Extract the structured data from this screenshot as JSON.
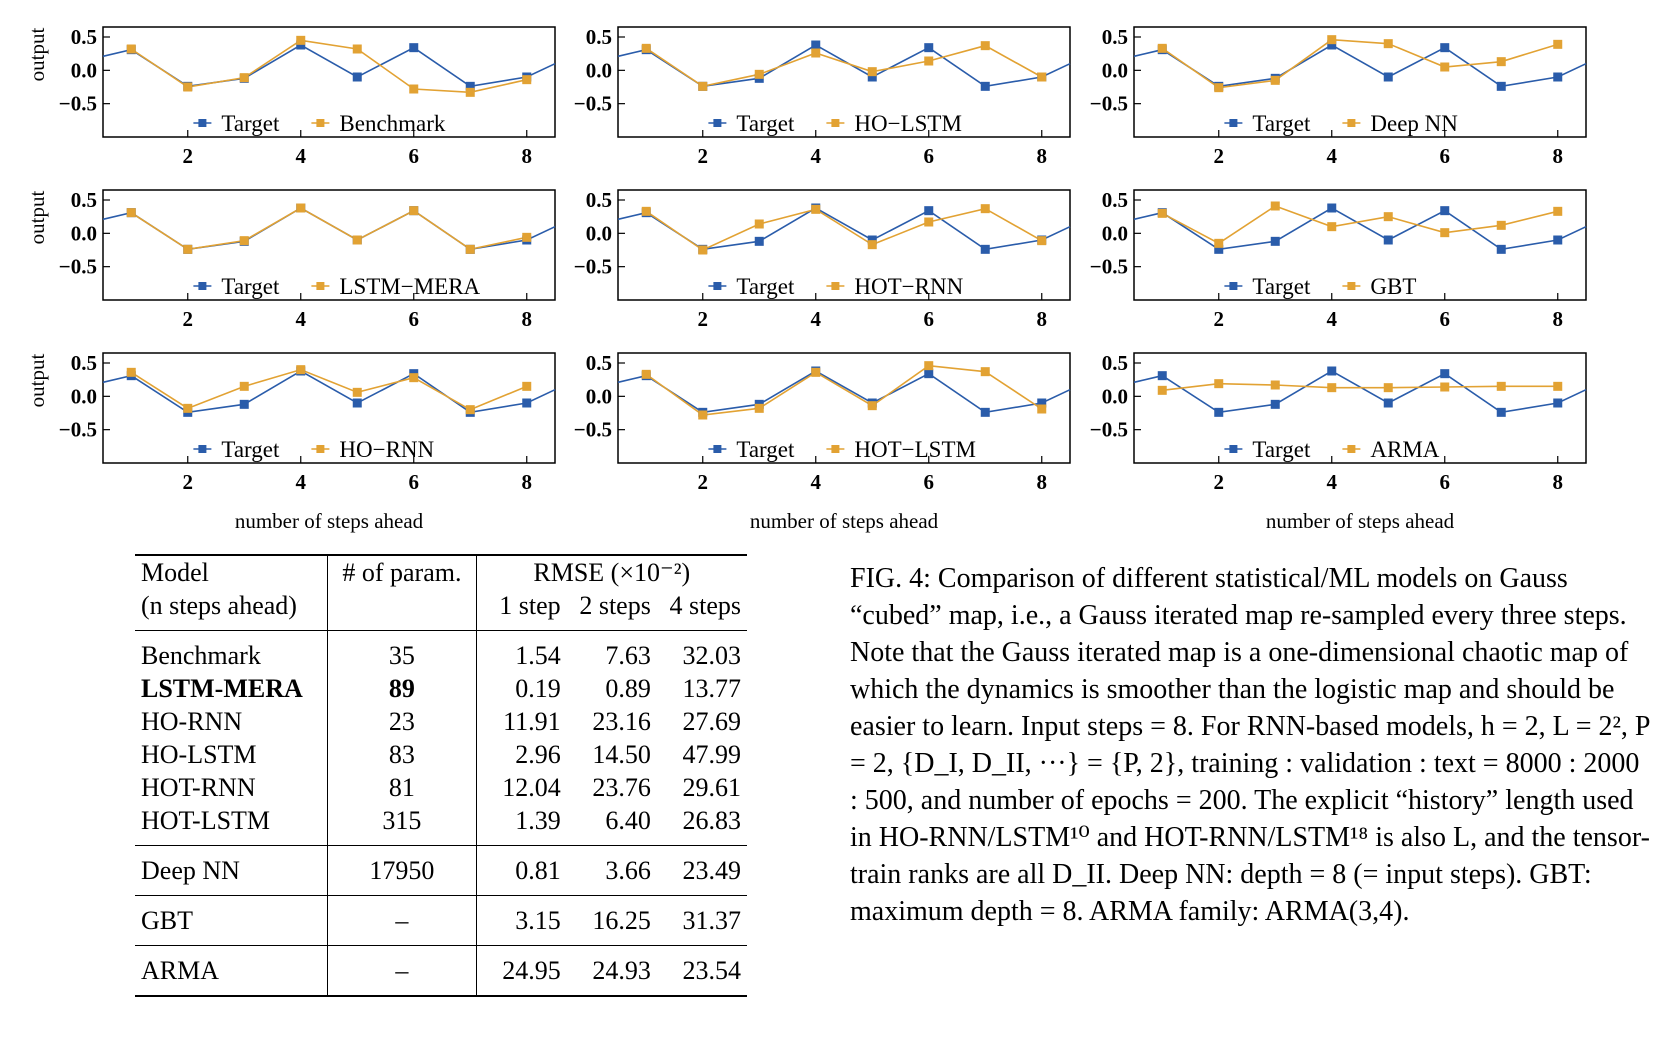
{
  "colors": {
    "target": "#2a5caa",
    "model": "#e2a233"
  },
  "axis_label_y": "output",
  "axis_label_x": "number of steps ahead",
  "target_label": "Target",
  "chart_data": [
    {
      "type": "line",
      "model": "Benchmark",
      "x": [
        1,
        2,
        3,
        4,
        5,
        6,
        7,
        8
      ],
      "target": [
        0.31,
        -0.24,
        -0.12,
        0.38,
        -0.1,
        0.34,
        -0.24,
        -0.1
      ],
      "prediction": [
        0.32,
        -0.25,
        -0.11,
        0.45,
        0.32,
        -0.28,
        -0.33,
        -0.14
      ],
      "ylim": [
        -1.0,
        0.65
      ],
      "xlim": [
        0.5,
        8.5
      ],
      "yticks": [
        0.5,
        0.0,
        -0.5
      ],
      "ytick_labels": [
        "0.5",
        "0.0",
        "−0.5"
      ],
      "xticks": [
        2,
        4,
        6,
        8
      ]
    },
    {
      "type": "line",
      "model": "HO−LSTM",
      "x": [
        1,
        2,
        3,
        4,
        5,
        6,
        7,
        8
      ],
      "target": [
        0.31,
        -0.24,
        -0.12,
        0.38,
        -0.1,
        0.34,
        -0.24,
        -0.1
      ],
      "prediction": [
        0.33,
        -0.24,
        -0.06,
        0.26,
        -0.02,
        0.14,
        0.37,
        -0.1
      ],
      "ylim": [
        -1.0,
        0.65
      ],
      "xlim": [
        0.5,
        8.5
      ],
      "yticks": [
        0.5,
        0.0,
        -0.5
      ],
      "ytick_labels": [
        "0.5",
        "0.0",
        "−0.5"
      ],
      "xticks": [
        2,
        4,
        6,
        8
      ]
    },
    {
      "type": "line",
      "model": "Deep NN",
      "x": [
        1,
        2,
        3,
        4,
        5,
        6,
        7,
        8
      ],
      "target": [
        0.31,
        -0.24,
        -0.12,
        0.38,
        -0.1,
        0.34,
        -0.24,
        -0.1
      ],
      "prediction": [
        0.33,
        -0.26,
        -0.15,
        0.46,
        0.4,
        0.05,
        0.13,
        0.39
      ],
      "ylim": [
        -1.0,
        0.65
      ],
      "xlim": [
        0.5,
        8.5
      ],
      "yticks": [
        0.5,
        0.0,
        -0.5
      ],
      "ytick_labels": [
        "0.5",
        "0.0",
        "−0.5"
      ],
      "xticks": [
        2,
        4,
        6,
        8
      ]
    },
    {
      "type": "line",
      "model": "LSTM−MERA",
      "x": [
        1,
        2,
        3,
        4,
        5,
        6,
        7,
        8
      ],
      "target": [
        0.31,
        -0.24,
        -0.12,
        0.38,
        -0.1,
        0.34,
        -0.24,
        -0.1
      ],
      "prediction": [
        0.31,
        -0.24,
        -0.11,
        0.38,
        -0.1,
        0.34,
        -0.24,
        -0.06
      ],
      "ylim": [
        -1.0,
        0.65
      ],
      "xlim": [
        0.5,
        8.5
      ],
      "yticks": [
        0.5,
        0.0,
        -0.5
      ],
      "ytick_labels": [
        "0.5",
        "0.0",
        "−0.5"
      ],
      "xticks": [
        2,
        4,
        6,
        8
      ]
    },
    {
      "type": "line",
      "model": "HOT−RNN",
      "x": [
        1,
        2,
        3,
        4,
        5,
        6,
        7,
        8
      ],
      "target": [
        0.31,
        -0.24,
        -0.12,
        0.38,
        -0.1,
        0.34,
        -0.24,
        -0.1
      ],
      "prediction": [
        0.33,
        -0.25,
        0.14,
        0.36,
        -0.17,
        0.17,
        0.37,
        -0.11
      ],
      "ylim": [
        -1.0,
        0.65
      ],
      "xlim": [
        0.5,
        8.5
      ],
      "yticks": [
        0.5,
        0.0,
        -0.5
      ],
      "ytick_labels": [
        "0.5",
        "0.0",
        "−0.5"
      ],
      "xticks": [
        2,
        4,
        6,
        8
      ]
    },
    {
      "type": "line",
      "model": "GBT",
      "x": [
        1,
        2,
        3,
        4,
        5,
        6,
        7,
        8
      ],
      "target": [
        0.31,
        -0.24,
        -0.12,
        0.38,
        -0.1,
        0.34,
        -0.24,
        -0.1
      ],
      "prediction": [
        0.3,
        -0.15,
        0.41,
        0.1,
        0.25,
        0.01,
        0.12,
        0.33
      ],
      "ylim": [
        -1.0,
        0.65
      ],
      "xlim": [
        0.5,
        8.5
      ],
      "yticks": [
        0.5,
        0.0,
        -0.5
      ],
      "ytick_labels": [
        "0.5",
        "0.0",
        "−0.5"
      ],
      "xticks": [
        2,
        4,
        6,
        8
      ]
    },
    {
      "type": "line",
      "model": "HO−RNN",
      "x": [
        1,
        2,
        3,
        4,
        5,
        6,
        7,
        8
      ],
      "target": [
        0.31,
        -0.24,
        -0.12,
        0.38,
        -0.1,
        0.34,
        -0.24,
        -0.1
      ],
      "prediction": [
        0.36,
        -0.18,
        0.15,
        0.4,
        0.06,
        0.28,
        -0.2,
        0.15
      ],
      "ylim": [
        -1.0,
        0.65
      ],
      "xlim": [
        0.5,
        8.5
      ],
      "yticks": [
        0.5,
        0.0,
        -0.5
      ],
      "ytick_labels": [
        "0.5",
        "0.0",
        "−0.5"
      ],
      "xticks": [
        2,
        4,
        6,
        8
      ]
    },
    {
      "type": "line",
      "model": "HOT−LSTM",
      "x": [
        1,
        2,
        3,
        4,
        5,
        6,
        7,
        8
      ],
      "target": [
        0.31,
        -0.24,
        -0.12,
        0.38,
        -0.1,
        0.34,
        -0.24,
        -0.1
      ],
      "prediction": [
        0.33,
        -0.28,
        -0.18,
        0.36,
        -0.14,
        0.46,
        0.37,
        -0.19
      ],
      "ylim": [
        -1.0,
        0.65
      ],
      "xlim": [
        0.5,
        8.5
      ],
      "yticks": [
        0.5,
        0.0,
        -0.5
      ],
      "ytick_labels": [
        "0.5",
        "0.0",
        "−0.5"
      ],
      "xticks": [
        2,
        4,
        6,
        8
      ]
    },
    {
      "type": "line",
      "model": "ARMA",
      "x": [
        1,
        2,
        3,
        4,
        5,
        6,
        7,
        8
      ],
      "target": [
        0.31,
        -0.24,
        -0.12,
        0.38,
        -0.1,
        0.34,
        -0.24,
        -0.1
      ],
      "prediction": [
        0.09,
        0.19,
        0.17,
        0.13,
        0.13,
        0.14,
        0.15,
        0.15
      ],
      "ylim": [
        -1.0,
        0.65
      ],
      "xlim": [
        0.5,
        8.5
      ],
      "yticks": [
        0.5,
        0.0,
        -0.5
      ],
      "ytick_labels": [
        "0.5",
        "0.0",
        "−0.5"
      ],
      "xticks": [
        2,
        4,
        6,
        8
      ]
    }
  ],
  "table": {
    "header": {
      "model": "Model",
      "model_sub": "(n steps ahead)",
      "params": "# of param.",
      "rmse": "RMSE (×10⁻²)",
      "step1": "1 step",
      "step2": "2 steps",
      "step4": "4 steps"
    },
    "rows": [
      {
        "model": "Benchmark",
        "params": "35",
        "s1": "1.54",
        "s2": "7.63",
        "s4": "32.03"
      },
      {
        "model": "LSTM-MERA",
        "params": "89",
        "s1": "0.19",
        "s2": "0.89",
        "s4": "13.77"
      },
      {
        "model": "HO-RNN",
        "params": "23",
        "s1": "11.91",
        "s2": "23.16",
        "s4": "27.69"
      },
      {
        "model": "HO-LSTM",
        "params": "83",
        "s1": "2.96",
        "s2": "14.50",
        "s4": "47.99"
      },
      {
        "model": "HOT-RNN",
        "params": "81",
        "s1": "12.04",
        "s2": "23.76",
        "s4": "29.61"
      },
      {
        "model": "HOT-LSTM",
        "params": "315",
        "s1": "1.39",
        "s2": "6.40",
        "s4": "26.83"
      },
      {
        "model": "Deep NN",
        "params": "17950",
        "s1": "0.81",
        "s2": "3.66",
        "s4": "23.49"
      },
      {
        "model": "GBT",
        "params": "–",
        "s1": "3.15",
        "s2": "16.25",
        "s4": "31.37"
      },
      {
        "model": "ARMA",
        "params": "–",
        "s1": "24.95",
        "s2": "24.93",
        "s4": "23.54"
      }
    ]
  },
  "caption": "FIG. 4: Comparison of different statistical/ML models on Gauss “cubed” map, i.e., a Gauss iterated map re-sampled every three steps. Note that the Gauss iterated map is a one-dimensional chaotic map of which the dynamics is smoother than the logistic map and should be easier to learn. Input steps = 8. For RNN-based models, h = 2, L = 2², P = 2, {D_I, D_II, ···} = {P, 2}, training : validation : text = 8000 : 2000 : 500, and number of epochs = 200. The explicit “history” length used in HO-RNN/LSTM¹⁰ and HOT-RNN/LSTM¹⁸ is also L, and the tensor-train ranks are all D_II. Deep NN: depth = 8 (= input steps). GBT: maximum depth = 8. ARMA family: ARMA(3,4)."
}
